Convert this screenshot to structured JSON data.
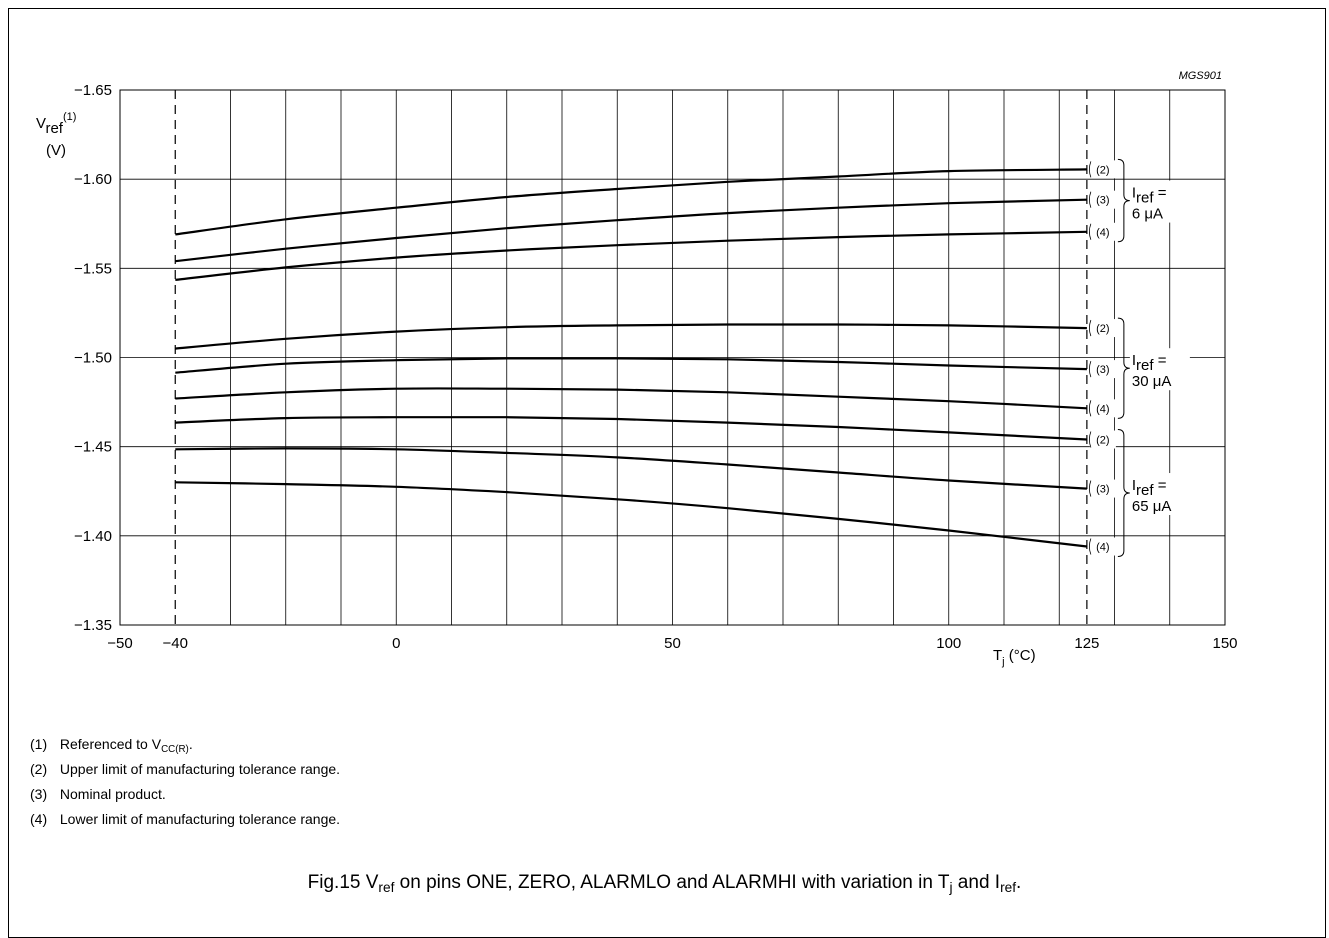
{
  "chart_data": {
    "type": "line",
    "code": "MGS901",
    "ylabel": {
      "main": "V",
      "sub": "ref",
      "sup": "(1)",
      "unit": "(V)"
    },
    "xlabel": {
      "main": "T",
      "sub": "j",
      "unit": " (°C)"
    },
    "xlim": [
      -50,
      150
    ],
    "ylim": [
      -1.35,
      -1.65
    ],
    "x_ticks": [
      "−50",
      "−40",
      "0",
      "50",
      "100",
      "125",
      "150"
    ],
    "x_tick_values": [
      -50,
      -40,
      0,
      50,
      100,
      125,
      150
    ],
    "y_ticks": [
      "−1.65",
      "−1.60",
      "−1.55",
      "−1.50",
      "−1.45",
      "−1.40",
      "−1.35"
    ],
    "y_tick_values": [
      -1.65,
      -1.6,
      -1.55,
      -1.5,
      -1.45,
      -1.4,
      -1.35
    ],
    "grid": true,
    "vertical_grid_step": 10,
    "dashed_limits": [
      -40,
      125
    ],
    "x": [
      -40,
      -20,
      0,
      20,
      40,
      60,
      80,
      100,
      125
    ],
    "groups": [
      {
        "label_prefix": "I",
        "label_sub": "ref",
        "label_suffix": " =",
        "value": "6 μA",
        "series": [
          {
            "name": "(2)",
            "values": [
              -1.569,
              -1.5775,
              -1.584,
              -1.59,
              -1.5945,
              -1.5985,
              -1.6015,
              -1.6045,
              -1.6055
            ]
          },
          {
            "name": "(3)",
            "values": [
              -1.554,
              -1.561,
              -1.567,
              -1.5725,
              -1.577,
              -1.581,
              -1.584,
              -1.5865,
              -1.5885
            ]
          },
          {
            "name": "(4)",
            "values": [
              -1.5435,
              -1.5505,
              -1.556,
              -1.56,
              -1.563,
              -1.5655,
              -1.5675,
              -1.569,
              -1.5705
            ]
          }
        ]
      },
      {
        "label_prefix": "I",
        "label_sub": "ref",
        "label_suffix": " =",
        "value": "30 μA",
        "series": [
          {
            "name": "(2)",
            "values": [
              -1.505,
              -1.5105,
              -1.5145,
              -1.517,
              -1.518,
              -1.5185,
              -1.5185,
              -1.518,
              -1.5165
            ]
          },
          {
            "name": "(3)",
            "values": [
              -1.4915,
              -1.4965,
              -1.4985,
              -1.4995,
              -1.4995,
              -1.499,
              -1.4975,
              -1.4955,
              -1.4935
            ]
          },
          {
            "name": "(4)",
            "values": [
              -1.477,
              -1.4805,
              -1.4825,
              -1.4825,
              -1.482,
              -1.4805,
              -1.478,
              -1.4755,
              -1.4715
            ]
          }
        ]
      },
      {
        "label_prefix": "I",
        "label_sub": "ref",
        "label_suffix": " =",
        "value": "65 μA",
        "series": [
          {
            "name": "(2)",
            "values": [
              -1.4635,
              -1.466,
              -1.4665,
              -1.4665,
              -1.4655,
              -1.4635,
              -1.461,
              -1.458,
              -1.454
            ]
          },
          {
            "name": "(3)",
            "values": [
              -1.4485,
              -1.449,
              -1.4485,
              -1.4465,
              -1.444,
              -1.44,
              -1.4355,
              -1.431,
              -1.4265
            ]
          },
          {
            "name": "(4)",
            "values": [
              -1.43,
              -1.429,
              -1.4275,
              -1.4245,
              -1.4205,
              -1.4155,
              -1.4095,
              -1.403,
              -1.394
            ]
          }
        ]
      }
    ]
  },
  "notes": [
    {
      "num": "(1)",
      "text": "Referenced to V",
      "sub": "CC(R)",
      "tail": "."
    },
    {
      "num": "(2)",
      "text": "Upper limit of manufacturing tolerance range.",
      "sub": "",
      "tail": ""
    },
    {
      "num": "(3)",
      "text": "Nominal product.",
      "sub": "",
      "tail": ""
    },
    {
      "num": "(4)",
      "text": "Lower limit of manufacturing tolerance range.",
      "sub": "",
      "tail": ""
    }
  ],
  "caption": {
    "lead": "Fig.15  V",
    "sub1": "ref",
    "mid": " on pins ONE, ZERO, ALARMLO and ALARMHI with variation in T",
    "sub2": "j",
    "mid2": " and I",
    "sub3": "ref",
    "tail": "."
  }
}
